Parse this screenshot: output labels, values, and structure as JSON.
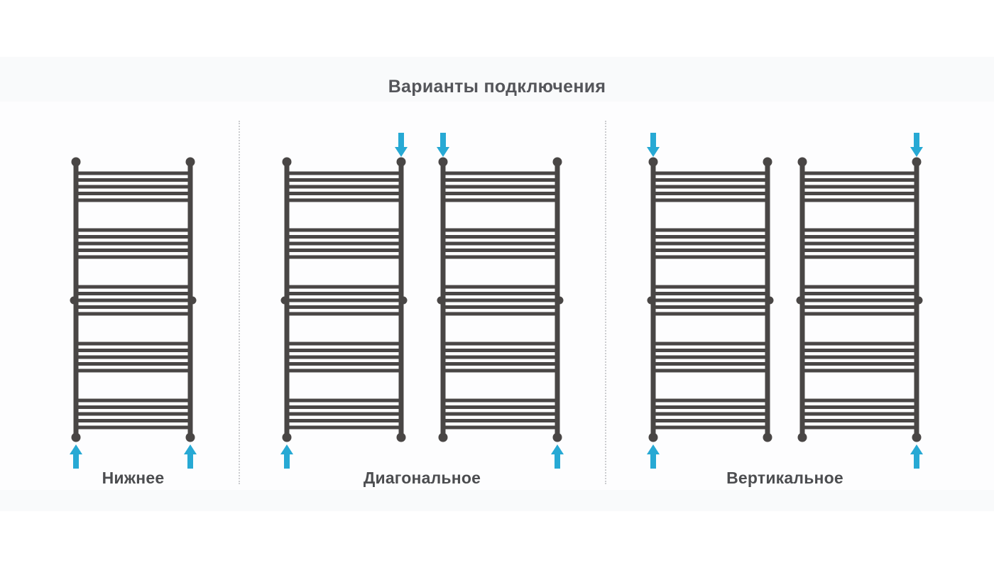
{
  "title": "Варианты подключения",
  "groups": [
    {
      "label": "Нижнее"
    },
    {
      "label": "Диагональное"
    },
    {
      "label": "Вертикальное"
    }
  ],
  "radiators": [
    {
      "type": "bottom",
      "arrows": {
        "top_left": false,
        "top_right": false,
        "bottom_left": true,
        "bottom_right": true
      }
    },
    {
      "type": "diagonal",
      "arrows": {
        "top_left": false,
        "top_right": true,
        "bottom_left": true,
        "bottom_right": false
      }
    },
    {
      "type": "diagonal",
      "arrows": {
        "top_left": true,
        "top_right": false,
        "bottom_left": false,
        "bottom_right": true
      }
    },
    {
      "type": "vertical",
      "arrows": {
        "top_left": true,
        "top_right": false,
        "bottom_left": true,
        "bottom_right": false
      }
    },
    {
      "type": "vertical",
      "arrows": {
        "top_left": false,
        "top_right": true,
        "bottom_left": false,
        "bottom_right": true
      }
    }
  ],
  "ladder": {
    "groups_of_bars": 5,
    "bars_per_group": 5
  },
  "colors": {
    "frame": "#494645",
    "arrow": "#27a9d4",
    "title_text": "#54555a",
    "label_text": "#4c4d50",
    "separator": "#cccdd0"
  }
}
